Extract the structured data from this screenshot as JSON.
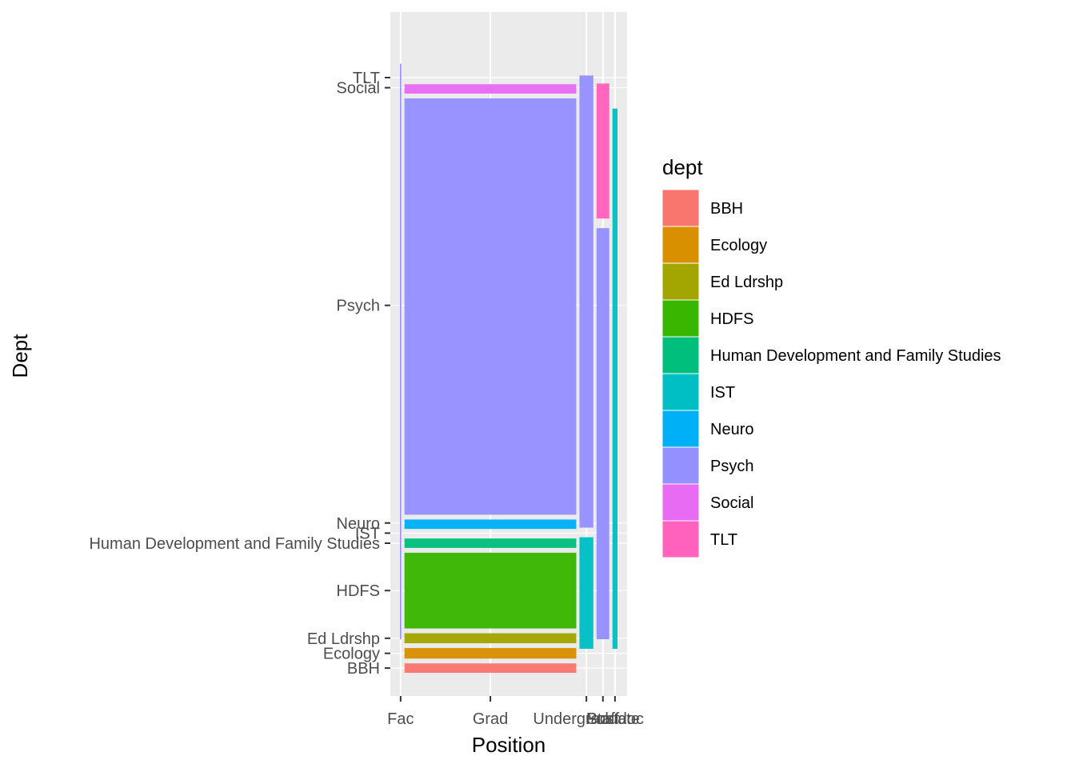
{
  "chart_data": {
    "type": "mosaic",
    "xlabel": "Position",
    "ylabel": "Dept",
    "legend_title": "dept",
    "legend_position": "right",
    "grid": true,
    "x_categories": [
      "Fac",
      "Grad",
      "Undergraduate",
      "Staff",
      "Postdoc"
    ],
    "column_shares": [
      0.006,
      0.755,
      0.061,
      0.056,
      0.022
    ],
    "y_categories": [
      "BBH",
      "Ecology",
      "Ed Ldrshp",
      "HDFS",
      "Human Development and Family Studies",
      "IST",
      "Neuro",
      "Psych",
      "Social",
      "TLT"
    ],
    "colors": {
      "BBH": "#F8766D",
      "Ecology": "#D89000",
      "Ed Ldrshp": "#A3A500",
      "HDFS": "#39B600",
      "Human Development and Family Studies": "#00BF7D",
      "IST": "#00BFC4",
      "Neuro": "#00B0F6",
      "Psych": "#9590FF",
      "Social": "#E76BF3",
      "TLT": "#FF62BC"
    },
    "series": [
      {
        "position": "Fac",
        "shares": [
          0.0,
          0.0,
          0.0,
          0.0,
          0.0,
          0.0,
          0.0,
          0.98,
          0.0,
          0.0
        ]
      },
      {
        "position": "Grad",
        "shares": [
          0.016,
          0.018,
          0.017,
          0.129,
          0.016,
          0.0,
          0.016,
          0.709,
          0.016,
          0.0
        ]
      },
      {
        "position": "Undergraduate",
        "shares": [
          0.0,
          0.0,
          0.0,
          0.0,
          0.0,
          0.19,
          0.0,
          0.77,
          0.0,
          0.0
        ]
      },
      {
        "position": "Staff",
        "shares": [
          0.0,
          0.0,
          0.0,
          0.0,
          0.0,
          0.0,
          0.0,
          0.7,
          0.0,
          0.23
        ]
      },
      {
        "position": "Postdoc",
        "shares": [
          0.0,
          0.0,
          0.0,
          0.0,
          0.0,
          0.92,
          0.0,
          0.0,
          0.0,
          0.0
        ]
      }
    ]
  }
}
